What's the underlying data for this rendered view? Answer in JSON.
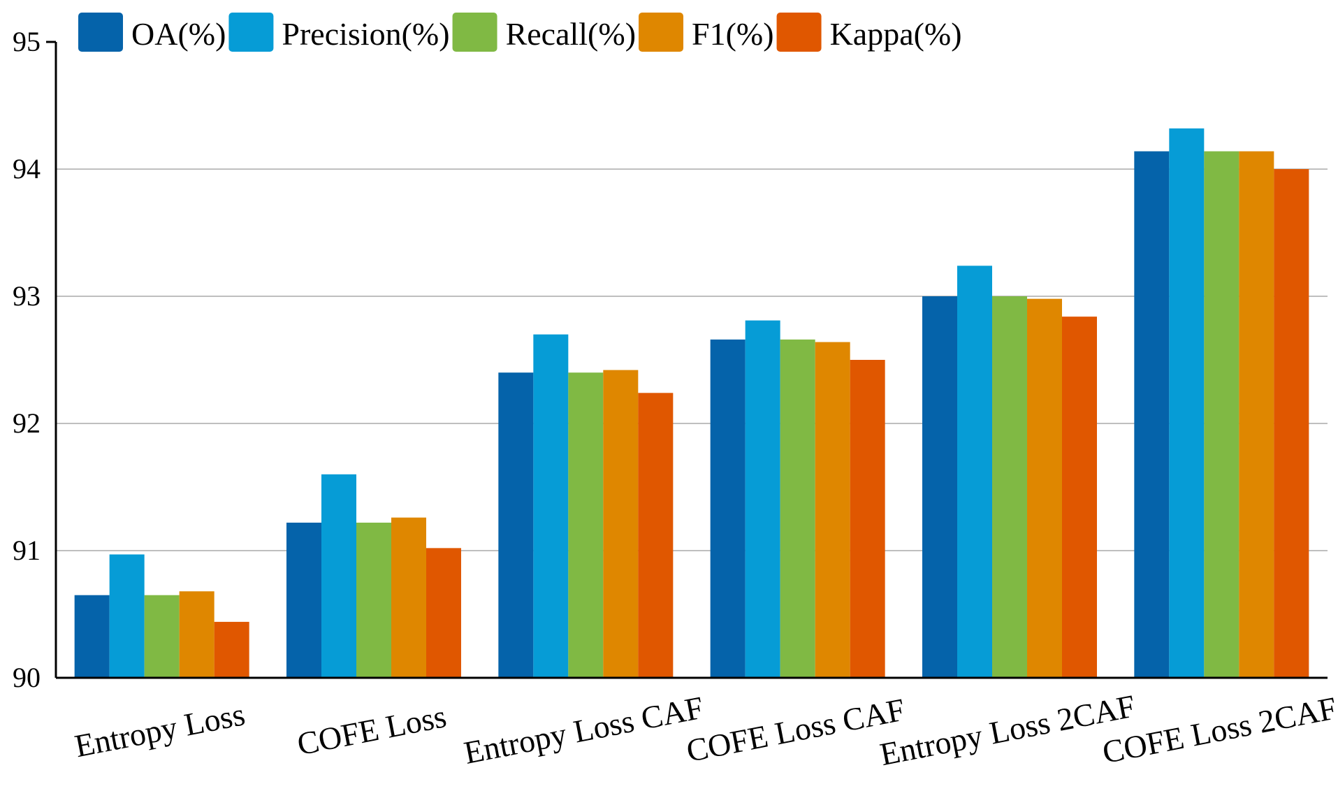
{
  "chart_data": {
    "type": "bar",
    "title": "",
    "xlabel": "",
    "ylabel": "",
    "ylim": [
      90,
      95
    ],
    "yticks": [
      90,
      91,
      92,
      93,
      94,
      95
    ],
    "grid": true,
    "legend_position": "top-left",
    "categories": [
      "Entropy Loss",
      "COFE Loss",
      "Entropy Loss CAF",
      "COFE Loss CAF",
      "Entropy Loss 2CAF",
      "COFE Loss 2CAF"
    ],
    "series": [
      {
        "name": "OA(%)",
        "color": "#0563aa",
        "values": [
          90.65,
          91.22,
          92.4,
          92.66,
          93.0,
          94.14
        ]
      },
      {
        "name": "Precision(%)",
        "color": "#069cd6",
        "values": [
          90.97,
          91.6,
          92.7,
          92.81,
          93.24,
          94.32
        ]
      },
      {
        "name": "Recall(%)",
        "color": "#80b944",
        "values": [
          90.65,
          91.22,
          92.4,
          92.66,
          93.0,
          94.14
        ]
      },
      {
        "name": "F1(%)",
        "color": "#df8700",
        "values": [
          90.68,
          91.26,
          92.42,
          92.64,
          92.98,
          94.14
        ]
      },
      {
        "name": "Kappa(%)",
        "color": "#e05700",
        "values": [
          90.44,
          91.02,
          92.24,
          92.5,
          92.84,
          94.0
        ]
      }
    ]
  }
}
